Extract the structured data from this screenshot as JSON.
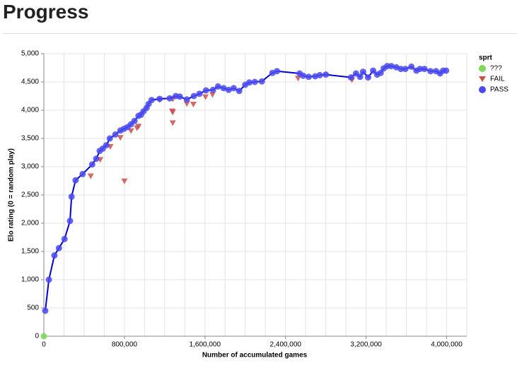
{
  "header": {
    "title": "Progress"
  },
  "chart_data": {
    "type": "scatter",
    "x_label": "Number of accumulated games",
    "y_label": "Elo rating (0 = random play)",
    "legend_title": "sprt",
    "legend": "top-right",
    "grid": true,
    "xlim": [
      0,
      4200000
    ],
    "xticks": [
      0,
      {
        "value": 800000,
        "label": "800,000"
      },
      {
        "value": 1600000,
        "label": "1,600,000"
      },
      {
        "value": 2400000,
        "label": "2,400,000"
      },
      {
        "value": 3200000,
        "label": "3,200,000"
      },
      {
        "value": 4000000,
        "label": "4,000,000"
      }
    ],
    "ylim": [
      0,
      5000
    ],
    "yticks": [
      0,
      500,
      {
        "value": 1000,
        "label": "1,000"
      },
      {
        "value": 1500,
        "label": "1,500"
      },
      {
        "value": 2000,
        "label": "2,000"
      },
      {
        "value": 2500,
        "label": "2,500"
      },
      {
        "value": 3000,
        "label": "3,000"
      },
      {
        "value": 3500,
        "label": "3,500"
      },
      {
        "value": 4000,
        "label": "4,000"
      },
      {
        "value": 4500,
        "label": "4,500"
      },
      {
        "value": 5000,
        "label": "5,000"
      }
    ],
    "series": [
      {
        "name": "???",
        "color": "#7ed957",
        "marker": "circle",
        "x": [
          0
        ],
        "values": [
          0
        ]
      },
      {
        "name": "FAIL",
        "color": "#c9504d",
        "marker": "triangle-down",
        "x": [
          465000,
          560000,
          660000,
          760000,
          800000,
          865000,
          925000,
          940000,
          1150000,
          1275000,
          1280000,
          1280000,
          1280000,
          1420000,
          1485000,
          1605000,
          1675000,
          2525000,
          3060000
        ],
        "values": [
          2830,
          3120,
          3350,
          3510,
          2740,
          3630,
          3680,
          3710,
          4180,
          3980,
          3960,
          3770,
          4190,
          4110,
          4100,
          4230,
          4270,
          4560,
          4530
        ]
      },
      {
        "name": "PASS",
        "color": "#4a4af0",
        "marker": "circle",
        "line_color": "#0000d0",
        "x": [
          14000,
          50000,
          105000,
          150000,
          205000,
          260000,
          275000,
          315000,
          385000,
          480000,
          520000,
          555000,
          585000,
          620000,
          655000,
          710000,
          760000,
          795000,
          830000,
          865000,
          900000,
          940000,
          965000,
          990000,
          1020000,
          1040000,
          1070000,
          1150000,
          1250000,
          1310000,
          1350000,
          1420000,
          1490000,
          1545000,
          1610000,
          1680000,
          1730000,
          1785000,
          1835000,
          1885000,
          1940000,
          2000000,
          2040000,
          2095000,
          2165000,
          2270000,
          2315000,
          2540000,
          2575000,
          2630000,
          2695000,
          2740000,
          2800000,
          3050000,
          3100000,
          3140000,
          3170000,
          3220000,
          3270000,
          3310000,
          3345000,
          3375000,
          3410000,
          3450000,
          3500000,
          3545000,
          3590000,
          3650000,
          3700000,
          3735000,
          3780000,
          3840000,
          3895000,
          3935000,
          3965000,
          3995000
        ],
        "values": [
          450,
          1000,
          1430,
          1560,
          1720,
          2040,
          2470,
          2760,
          2870,
          3040,
          3140,
          3280,
          3320,
          3380,
          3500,
          3570,
          3640,
          3670,
          3700,
          3750,
          3810,
          3900,
          3920,
          3980,
          4040,
          4110,
          4180,
          4200,
          4210,
          4250,
          4240,
          4190,
          4250,
          4290,
          4350,
          4360,
          4420,
          4390,
          4360,
          4390,
          4340,
          4450,
          4490,
          4500,
          4510,
          4660,
          4690,
          4650,
          4610,
          4590,
          4600,
          4620,
          4630,
          4580,
          4650,
          4590,
          4680,
          4580,
          4700,
          4630,
          4660,
          4740,
          4780,
          4780,
          4760,
          4730,
          4730,
          4770,
          4700,
          4730,
          4730,
          4690,
          4690,
          4650,
          4700,
          4700
        ]
      }
    ]
  }
}
